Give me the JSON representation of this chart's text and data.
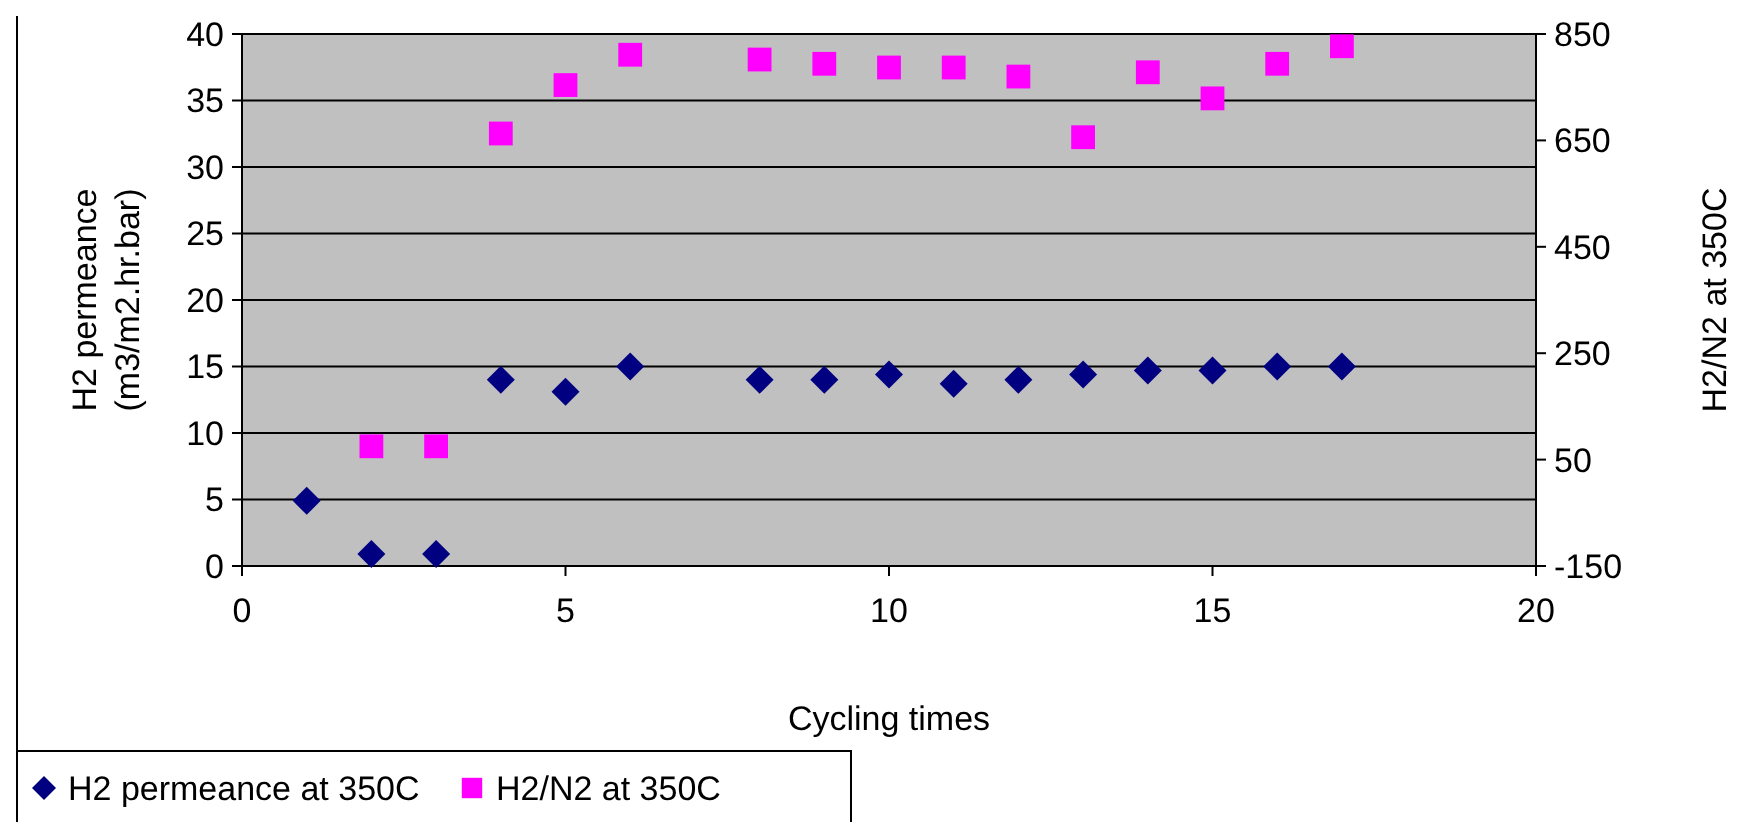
{
  "chart_data": {
    "type": "scatter",
    "xlabel": "Cycling times",
    "ylabel": "H2 permeance\n(m3/m2.hr.bar)",
    "y2label": "H2/N2 at 350C",
    "xlim": [
      0,
      20
    ],
    "xticks": [
      0,
      5,
      10,
      15,
      20
    ],
    "ylim": [
      0,
      40
    ],
    "yticks": [
      0,
      5,
      10,
      15,
      20,
      25,
      30,
      35,
      40
    ],
    "y2lim": [
      -150,
      850
    ],
    "y2ticks": [
      -150,
      50,
      250,
      450,
      650,
      850
    ],
    "grid": "y",
    "legend": "bottom left",
    "series": [
      {
        "name": "H2 permeance at 350C",
        "color": "#000080",
        "marker": "diamond",
        "x": [
          1,
          2,
          3,
          4,
          5,
          6,
          8,
          9,
          10,
          11,
          12,
          13,
          14,
          15,
          16,
          17
        ],
        "values": [
          4.9,
          0.9,
          0.9,
          14.0,
          13.1,
          15.0,
          14.0,
          14.0,
          14.4,
          13.7,
          14.0,
          14.4,
          14.7,
          14.7,
          15.0,
          15.0
        ]
      },
      {
        "name": "H2/N2 at 350C",
        "color": "#ff00ff",
        "marker": "square",
        "axis": "y2",
        "x": [
          2,
          3,
          4,
          5,
          6,
          8,
          9,
          10,
          11,
          12,
          13,
          14,
          15,
          16,
          17
        ],
        "values": [
          75,
          75,
          663,
          754,
          811,
          802,
          794,
          787,
          787,
          770,
          656,
          778,
          729,
          794,
          827
        ]
      }
    ]
  }
}
